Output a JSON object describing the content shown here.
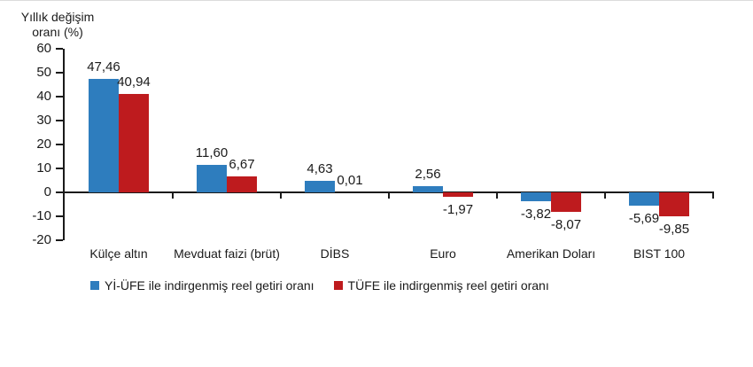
{
  "chart_data": {
    "type": "bar",
    "title_lines": [
      "Yıllık değişim",
      "oranı (%)"
    ],
    "categories": [
      "Külçe altın",
      "Mevduat faizi (brüt)",
      "DİBS",
      "Euro",
      "Amerikan Doları",
      "BIST 100"
    ],
    "series": [
      {
        "name": "Yİ-ÜFE ile indirgenmiş reel getiri oranı",
        "color": "#2E7DBE",
        "values": [
          47.46,
          11.6,
          4.63,
          2.56,
          -3.82,
          -5.69
        ],
        "labels": [
          "47,46",
          "11,60",
          "4,63",
          "2,56",
          "-3,82",
          "-5,69"
        ]
      },
      {
        "name": "TÜFE ile indirgenmiş reel getiri oranı",
        "color": "#BE1B1E",
        "values": [
          40.94,
          6.67,
          0.01,
          -1.97,
          -8.07,
          -9.85
        ],
        "labels": [
          "40,94",
          "6,67",
          "0,01",
          "-1,97",
          "-8,07",
          "-9,85"
        ]
      }
    ],
    "ylim": [
      -20,
      60
    ],
    "yticks": [
      60,
      50,
      40,
      30,
      20,
      10,
      0,
      -10,
      -20
    ],
    "grid": false,
    "legend_position": "bottom",
    "axis_color": "#1a1a1a"
  }
}
